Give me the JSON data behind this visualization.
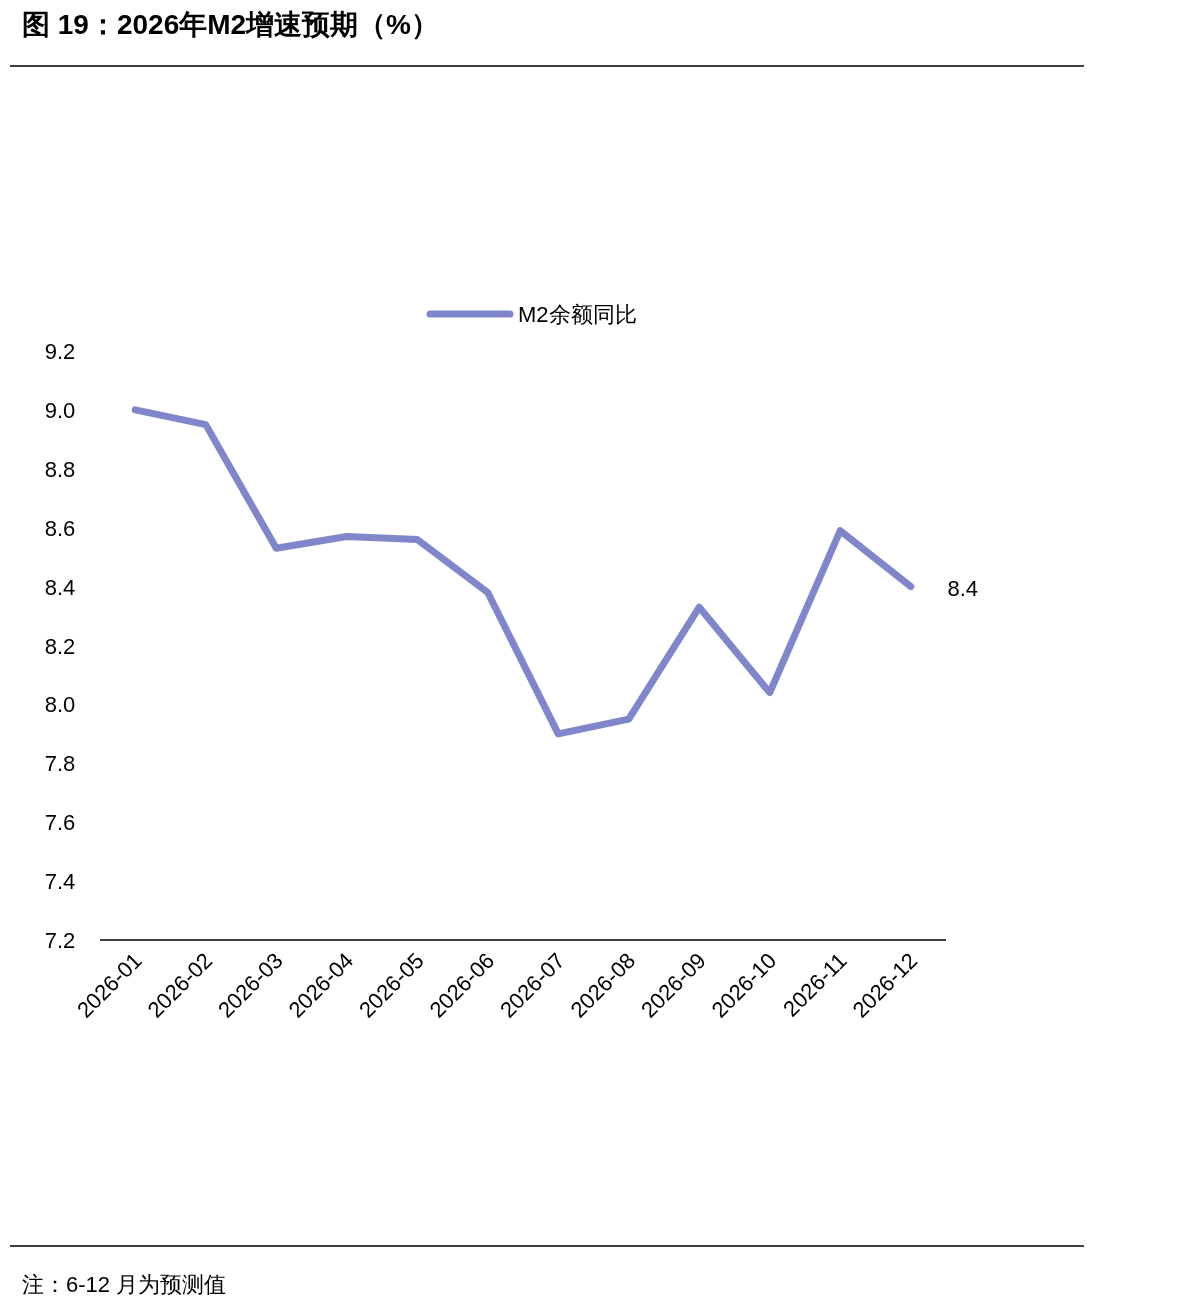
{
  "chart_data": {
    "type": "line",
    "title": "图 19：2026年M2增速预期（%）",
    "categories": [
      "2026-01",
      "2026-02",
      "2026-03",
      "2026-04",
      "2026-05",
      "2026-06",
      "2026-07",
      "2026-08",
      "2026-09",
      "2026-10",
      "2026-11",
      "2026-12"
    ],
    "series": [
      {
        "name": "M2余额同比",
        "color": "#7f86c9",
        "values": [
          9.0,
          8.95,
          8.53,
          8.57,
          8.56,
          8.38,
          7.9,
          7.95,
          8.33,
          8.04,
          8.59,
          8.4
        ],
        "value_labels": [
          null,
          null,
          null,
          null,
          null,
          null,
          null,
          null,
          null,
          null,
          null,
          "8.4"
        ]
      }
    ],
    "ylim": [
      7.2,
      9.2
    ],
    "yticks": [
      7.2,
      7.4,
      7.6,
      7.8,
      {
        "value": 8,
        "label": "8.0"
      },
      8.2,
      8.4,
      8.6,
      8.8,
      {
        "value": 9,
        "label": "9.0"
      },
      9.2
    ],
    "grid": false,
    "legend": "top",
    "marker": "none",
    "line_style": "solid",
    "annotations": [
      "注：6-12 月为预测值"
    ]
  }
}
